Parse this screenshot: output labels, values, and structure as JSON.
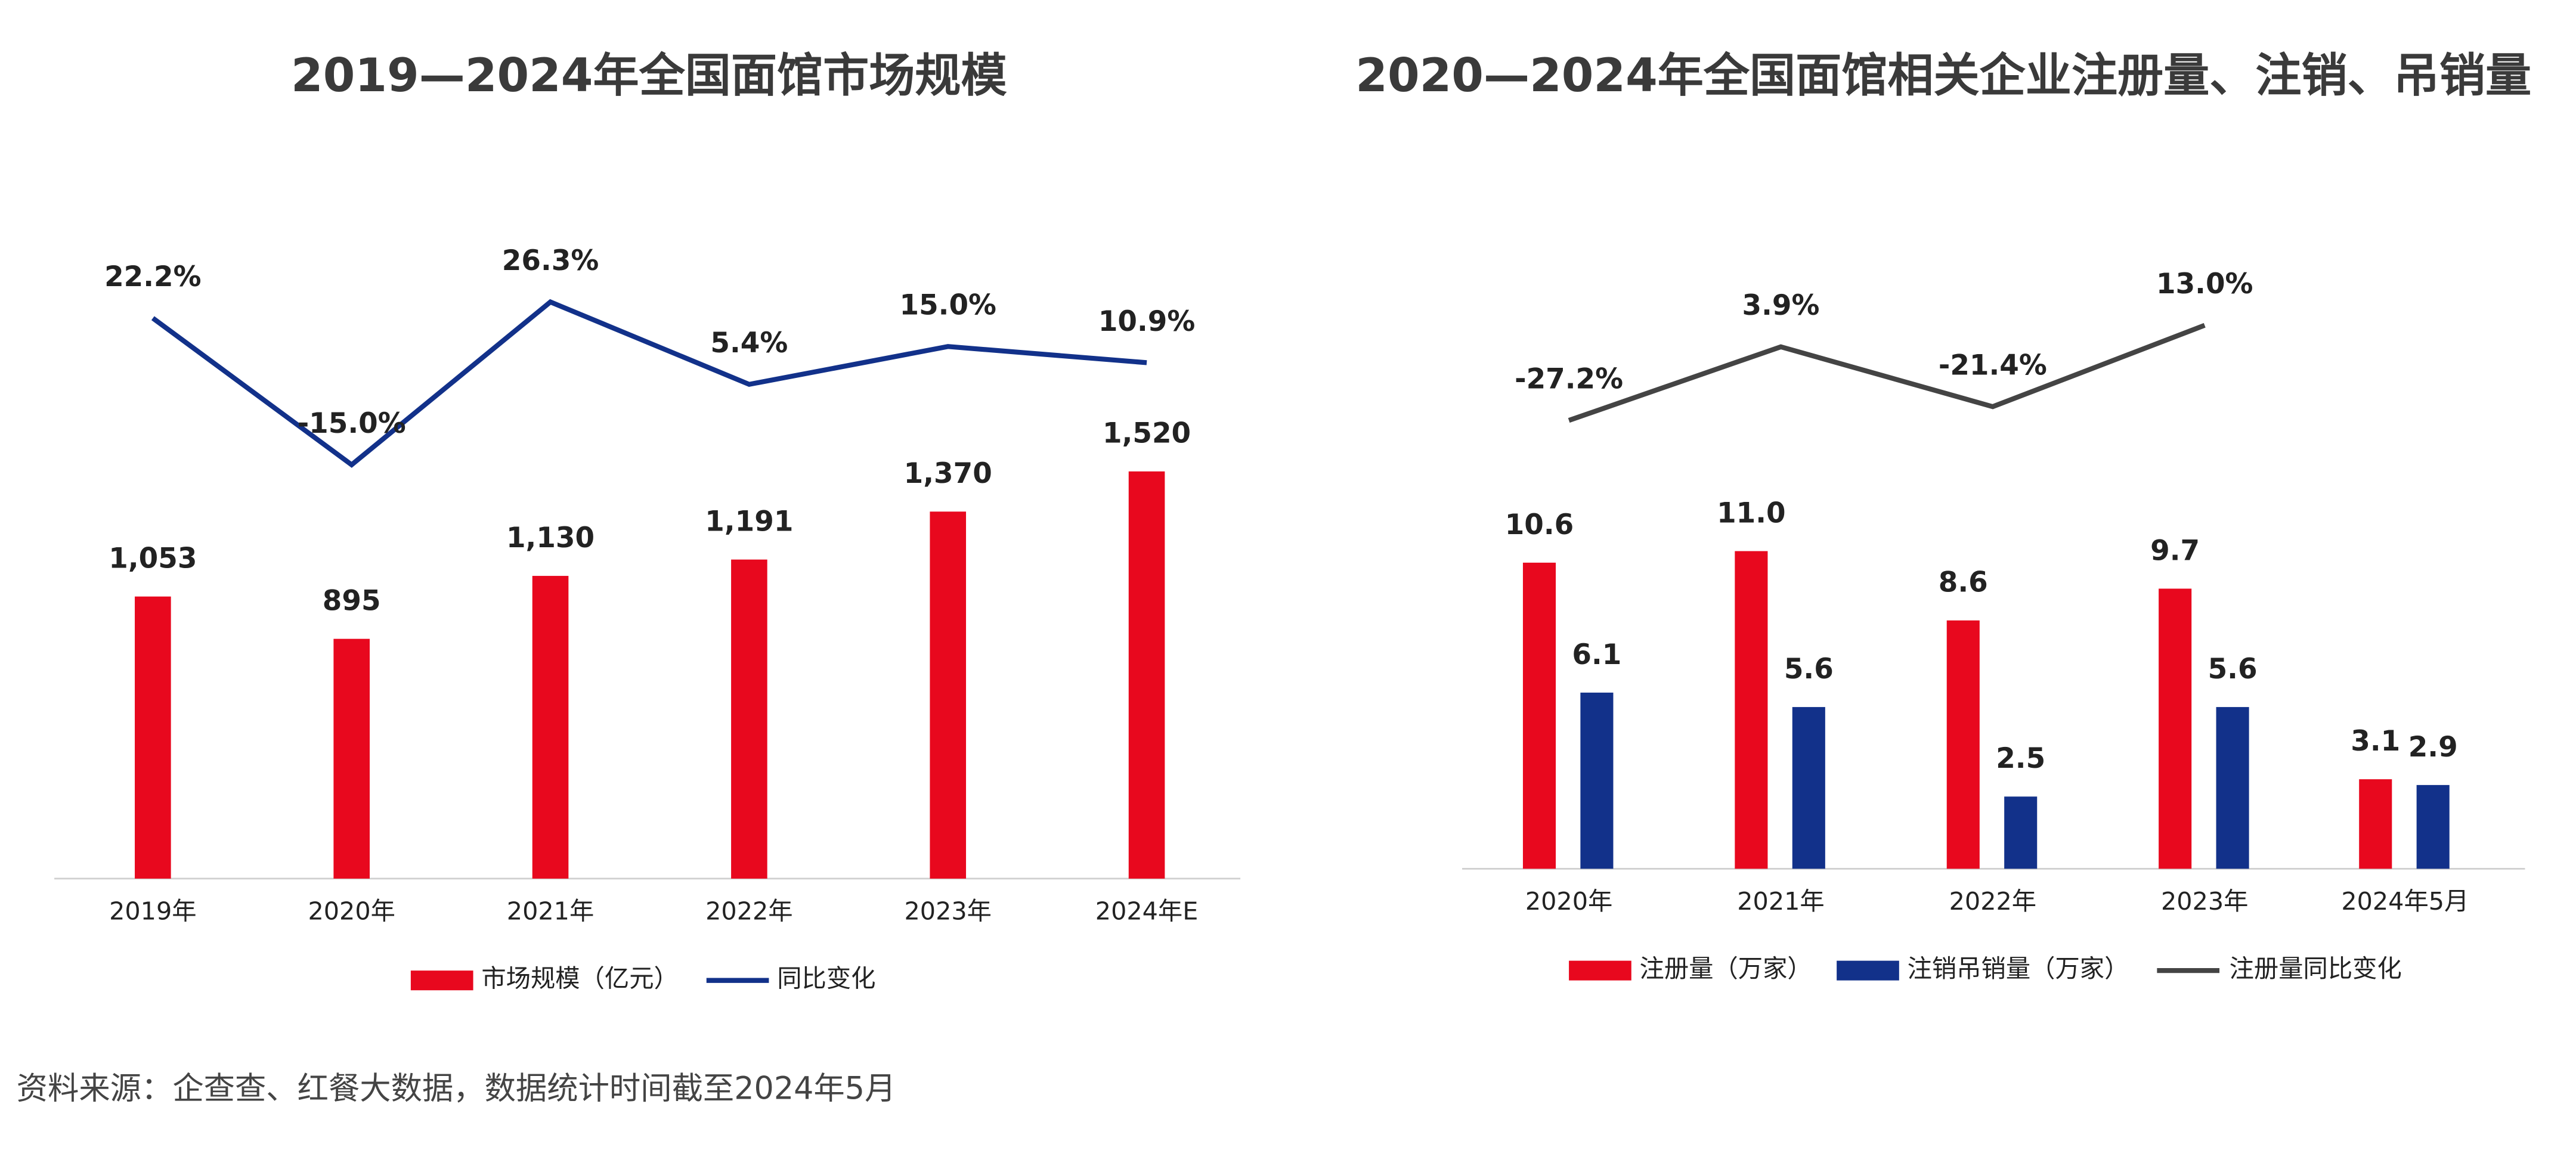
{
  "chart_data": [
    {
      "type": "bar",
      "title": "2019—2024年全国面馆市场规模",
      "categories": [
        "2019年",
        "2020年",
        "2021年",
        "2022年",
        "2023年",
        "2024年E"
      ],
      "series": [
        {
          "name": "市场规模（亿元）",
          "color": "#e8081e",
          "type": "bar",
          "values": [
            1053,
            895,
            1130,
            1191,
            1370,
            1520
          ],
          "value_labels": [
            "1,053",
            "895",
            "1,130",
            "1,191",
            "1,370",
            "1,520"
          ]
        },
        {
          "name": "同比变化",
          "color": "#12318a",
          "type": "line",
          "axis": "y2",
          "values": [
            22.2,
            -15.0,
            26.3,
            5.4,
            15.0,
            10.9
          ],
          "value_labels": [
            "22.2%",
            "-15.0%",
            "26.3%",
            "5.4%",
            "15.0%",
            "10.9%"
          ]
        }
      ],
      "ylim": [
        0,
        1600
      ],
      "y2lim": [
        -20,
        30
      ]
    },
    {
      "type": "bar",
      "title": "2020—2024年全国面馆相关企业注册量、注销、吊销量",
      "categories": [
        "2020年",
        "2021年",
        "2022年",
        "2023年",
        "2024年5月"
      ],
      "series": [
        {
          "name": "注册量（万家）",
          "color": "#e8081e",
          "type": "bar",
          "values": [
            10.6,
            11.0,
            8.6,
            9.7,
            3.1
          ],
          "value_labels": [
            "10.6",
            "11.0",
            "8.6",
            "9.7",
            "3.1"
          ]
        },
        {
          "name": "注销吊销量（万家）",
          "color": "#12318a",
          "type": "bar",
          "values": [
            6.1,
            5.6,
            2.5,
            5.6,
            2.9
          ],
          "value_labels": [
            "6.1",
            "5.6",
            "2.5",
            "5.6",
            "2.9"
          ]
        },
        {
          "name": "注册量同比变化",
          "color": "#444444",
          "type": "line",
          "axis": "y2",
          "values": [
            -27.2,
            3.9,
            -21.4,
            13.0,
            null
          ],
          "value_labels": [
            "-27.2%",
            "3.9%",
            "-21.4%",
            "13.0%",
            null
          ]
        }
      ],
      "ylim": [
        0,
        12
      ],
      "y2lim": [
        -30,
        20
      ]
    }
  ],
  "source": "资料来源：企查查、红餐大数据，数据统计时间截至2024年5月"
}
